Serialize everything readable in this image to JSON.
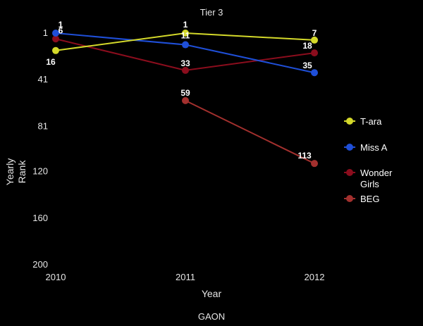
{
  "chart_data": {
    "type": "line",
    "title": "Tier 3",
    "xlabel": "Year",
    "ylabel": "Yearly Rank",
    "ylabel_lines": [
      "Yearly",
      "Rank"
    ],
    "caption": "GAON",
    "x": [
      2010,
      2011,
      2012
    ],
    "x_tick_labels": [
      "2010",
      "2011",
      "2012"
    ],
    "y_ticks": [
      1,
      41,
      81,
      120,
      160,
      200
    ],
    "y_tick_labels": [
      "1",
      "41",
      "81",
      "120",
      "160",
      "200"
    ],
    "ylim": [
      1,
      200
    ],
    "y_reversed": true,
    "grid": false,
    "legend_position": "right",
    "series": [
      {
        "name": "T-ara",
        "name_lines": [
          "T-ara"
        ],
        "color": "#d4d92a",
        "values": [
          16,
          1,
          7
        ],
        "labels": [
          "16",
          "1",
          "7"
        ]
      },
      {
        "name": "Miss A",
        "name_lines": [
          "Miss A"
        ],
        "color": "#1f4fd8",
        "values": [
          1,
          11,
          35
        ],
        "labels": [
          "1",
          "11",
          "35"
        ]
      },
      {
        "name": "Wonder Girls",
        "name_lines": [
          "Wonder",
          "Girls"
        ],
        "color": "#8b0d1d",
        "values": [
          6,
          33,
          18
        ],
        "labels": [
          "6",
          "33",
          "18"
        ]
      },
      {
        "name": "BEG",
        "name_lines": [
          "BEG"
        ],
        "color": "#a3302e",
        "values": [
          null,
          59,
          113
        ],
        "labels": [
          null,
          "59",
          "113"
        ]
      }
    ]
  }
}
